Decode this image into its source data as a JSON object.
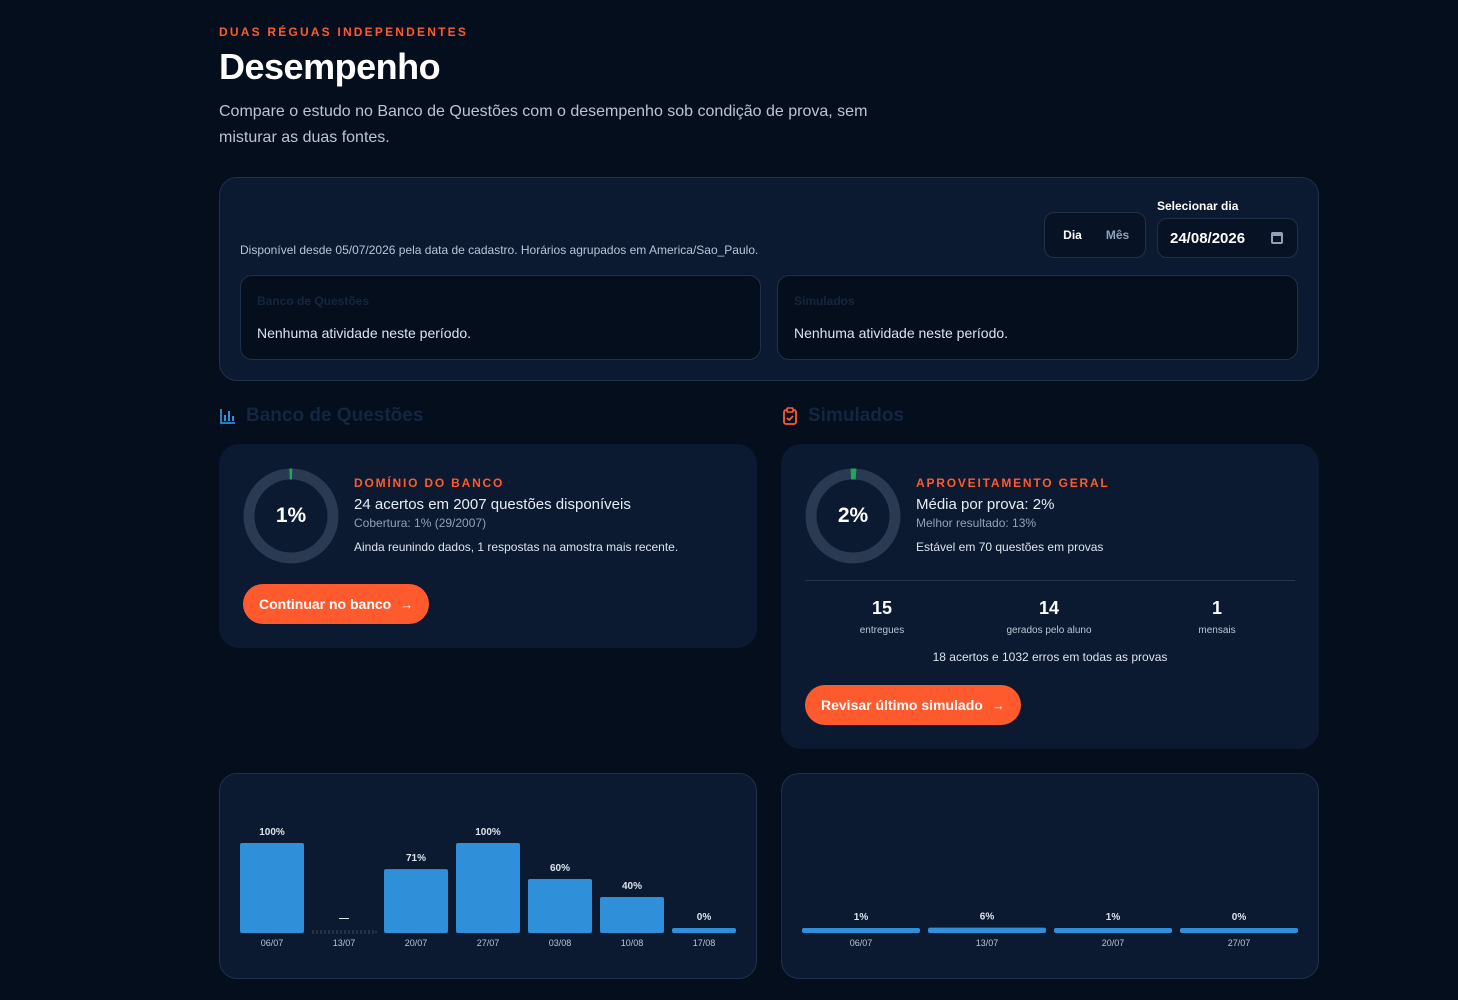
{
  "header": {
    "eyebrow": "DUAS RÉGUAS INDEPENDENTES",
    "title": "Desempenho",
    "subtitle": "Compare o estudo no Banco de Questões com o desempenho sob condição de prova, sem misturar as duas fontes."
  },
  "filters": {
    "availability": "Disponível desde 05/07/2026 pela data de cadastro. Horários agrupados em America/Sao_Paulo.",
    "mode_day": "Dia",
    "mode_month": "Mês",
    "active_mode": "Dia",
    "date_label": "Selecionar dia",
    "date_value": "24/08/2026",
    "bank_box": {
      "title": "Banco de Questões",
      "empty": "Nenhuma atividade neste período."
    },
    "sim_box": {
      "title": "Simulados",
      "empty": "Nenhuma atividade neste período."
    }
  },
  "bank": {
    "heading": "Banco de Questões",
    "icon": "bar-chart-icon",
    "ring_value": "1%",
    "ring_fraction": 0.01,
    "eyebrow": "DOMÍNIO DO BANCO",
    "main": "24 acertos em 2007 questões disponíveis",
    "sub": "Cobertura: 1% (29/2007)",
    "note": "Ainda reunindo dados, 1 respostas na amostra mais recente.",
    "cta": "Continuar no banco"
  },
  "sim": {
    "heading": "Simulados",
    "icon": "clipboard-check-icon",
    "ring_value": "2%",
    "ring_fraction": 0.02,
    "eyebrow": "APROVEITAMENTO GERAL",
    "main": "Média por prova: 2%",
    "sub": "Melhor resultado: 13%",
    "note": "Estável em 70 questões em provas",
    "stats": [
      {
        "value": "15",
        "label": "entregues"
      },
      {
        "value": "14",
        "label": "gerados pelo aluno"
      },
      {
        "value": "1",
        "label": "mensais"
      }
    ],
    "totals": "18 acertos e 1032 erros em todas as provas",
    "cta": "Revisar último simulado"
  },
  "colors": {
    "accent": "#ff5a2e",
    "bar": "#2f8fd8",
    "ring_track": "#2a3a52",
    "ring_fill": "#1fa65a"
  },
  "chart_data": [
    {
      "type": "bar",
      "categories": [
        "06/07",
        "13/07",
        "20/07",
        "27/07",
        "03/08",
        "10/08",
        "17/08"
      ],
      "values": [
        100,
        null,
        71,
        100,
        60,
        40,
        0
      ],
      "labels": [
        "100%",
        "—",
        "71%",
        "100%",
        "60%",
        "40%",
        "0%"
      ],
      "ylim": [
        0,
        100
      ]
    },
    {
      "type": "bar",
      "categories": [
        "06/07",
        "13/07",
        "20/07",
        "27/07"
      ],
      "values": [
        1,
        6,
        1,
        0
      ],
      "labels": [
        "1%",
        "6%",
        "1%",
        "0%"
      ],
      "ylim": [
        0,
        100
      ]
    }
  ]
}
